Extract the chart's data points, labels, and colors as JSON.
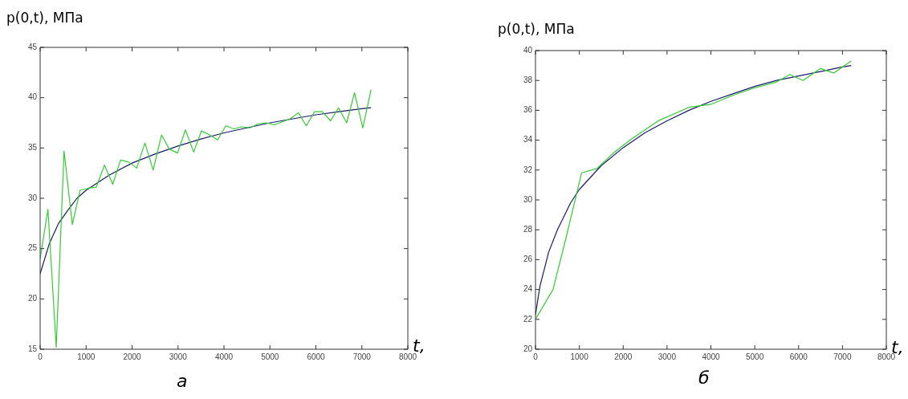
{
  "chart_data": [
    {
      "type": "line",
      "ylabel": "p(0,t), МПа",
      "xlabel": "t,",
      "annotations": [
        "а"
      ],
      "xlim": [
        0,
        8000
      ],
      "xticks": [
        0,
        1000,
        2000,
        3000,
        4000,
        5000,
        6000,
        7000,
        8000
      ],
      "ylim": [
        15,
        45
      ],
      "yticks": [
        15,
        20,
        25,
        30,
        35,
        40,
        45
      ],
      "marker": "none",
      "line_style": "solid",
      "series": [
        {
          "color": "#33cc33",
          "x": [
            0,
            170,
            350,
            520,
            700,
            870,
            1050,
            1220,
            1400,
            1580,
            1750,
            1930,
            2100,
            2280,
            2460,
            2640,
            2810,
            2990,
            3160,
            3340,
            3510,
            3690,
            3860,
            4040,
            4220,
            4390,
            4570,
            4740,
            4920,
            5090,
            5270,
            5440,
            5620,
            5790,
            5970,
            6140,
            6320,
            6490,
            6670,
            6840,
            7020,
            7200
          ],
          "values": [
            24,
            28.9,
            15.2,
            34.7,
            27.4,
            30.8,
            31,
            31.1,
            33.3,
            31.4,
            33.8,
            33.6,
            33,
            35.5,
            32.8,
            36.3,
            34.9,
            34.5,
            36.8,
            34.6,
            36.7,
            36.3,
            35.8,
            37.2,
            36.9,
            37.1,
            37,
            37.4,
            37.5,
            37.3,
            37.6,
            37.9,
            38.5,
            37.2,
            38.6,
            38.6,
            37.7,
            39,
            37.5,
            40.5,
            37,
            40.8
          ]
        },
        {
          "color": "#1a1a6e",
          "x": [
            0,
            200,
            400,
            600,
            800,
            1000,
            1500,
            2000,
            2500,
            3000,
            3500,
            4000,
            4500,
            5000,
            5500,
            6000,
            6500,
            7000,
            7200
          ],
          "values": [
            22.5,
            25.5,
            27.5,
            28.8,
            30,
            30.8,
            32.3,
            33.5,
            34.4,
            35.2,
            35.9,
            36.5,
            37,
            37.5,
            37.9,
            38.3,
            38.6,
            38.9,
            39
          ]
        }
      ]
    },
    {
      "type": "line",
      "ylabel": "p(0,t), МПа",
      "xlabel": "t,",
      "annotations": [
        "б"
      ],
      "xlim": [
        0,
        8000
      ],
      "xticks": [
        0,
        1000,
        2000,
        3000,
        4000,
        5000,
        6000,
        7000,
        8000
      ],
      "ylim": [
        20,
        40
      ],
      "yticks": [
        20,
        22,
        24,
        26,
        28,
        30,
        32,
        34,
        36,
        38,
        40
      ],
      "marker": "none",
      "line_style": "solid",
      "series": [
        {
          "color": "#33cc33",
          "x": [
            0,
            400,
            700,
            1050,
            1400,
            1800,
            2200,
            2800,
            3500,
            4000,
            4500,
            5000,
            5500,
            5800,
            6100,
            6500,
            6800,
            7200
          ],
          "values": [
            22,
            24,
            27.5,
            31.8,
            32.1,
            33.2,
            34.1,
            35.3,
            36.2,
            36.4,
            37,
            37.5,
            37.9,
            38.4,
            38,
            38.8,
            38.5,
            39.3
          ]
        },
        {
          "color": "#1a1a6e",
          "x": [
            0,
            100,
            300,
            500,
            800,
            1000,
            1500,
            2000,
            2500,
            3000,
            3500,
            4000,
            4500,
            5000,
            5500,
            6000,
            6500,
            7000,
            7200
          ],
          "values": [
            22.3,
            24.2,
            26.5,
            28,
            29.8,
            30.7,
            32.3,
            33.5,
            34.5,
            35.3,
            36,
            36.6,
            37.1,
            37.6,
            38,
            38.3,
            38.6,
            38.9,
            39
          ]
        }
      ]
    }
  ]
}
